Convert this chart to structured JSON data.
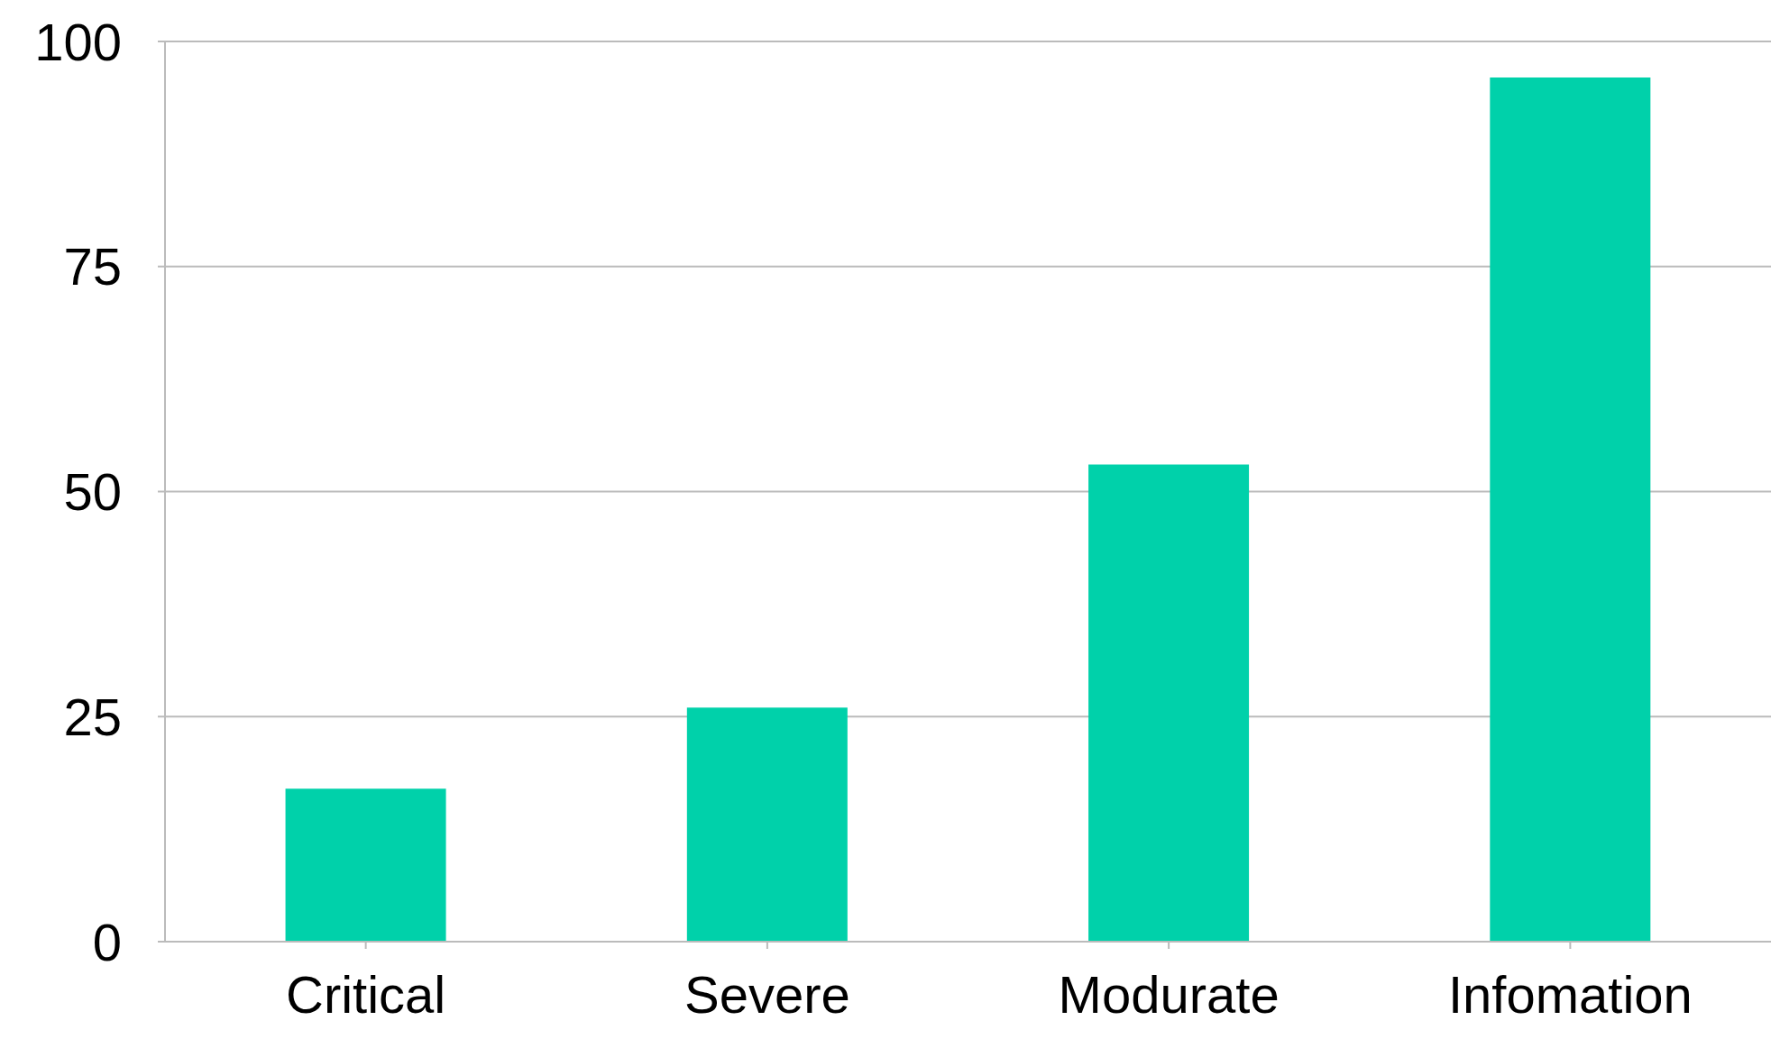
{
  "chart_data": {
    "type": "bar",
    "categories": [
      "Critical",
      "Severe",
      "Modurate",
      "Infomation"
    ],
    "values": [
      17,
      26,
      53,
      96
    ],
    "color": "#00d1aa",
    "ylim": [
      0,
      100
    ],
    "yticks": [
      0,
      25,
      50,
      75,
      100
    ],
    "grid": "y"
  }
}
